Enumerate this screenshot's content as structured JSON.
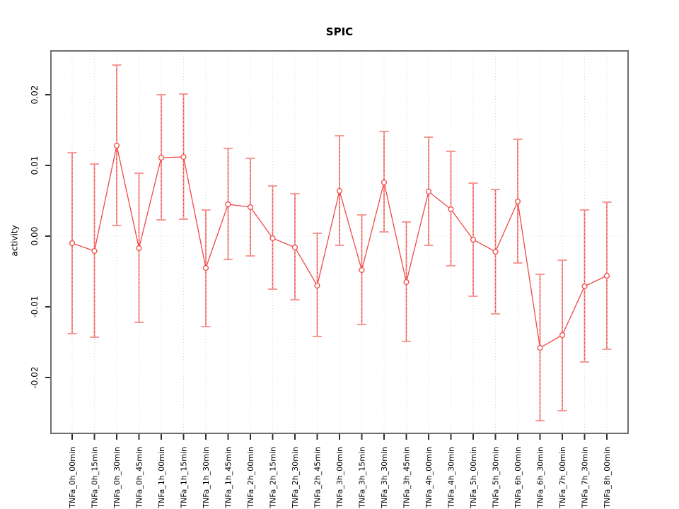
{
  "chart_data": {
    "type": "line",
    "title": "SPIC",
    "xlabel": "",
    "ylabel": "activity",
    "legend": null,
    "grid": "vertical-dotted",
    "zero_line": true,
    "point_style": "open-circle",
    "ylim": [
      -0.0279,
      0.0262
    ],
    "y_ticks": [
      -0.02,
      -0.01,
      0.0,
      0.01,
      0.02
    ],
    "y_tick_labels": [
      "-0.02",
      "-0.01",
      "0.00",
      "0.01",
      "0.02"
    ],
    "categories": [
      "TNFa_0h_00min",
      "TNFa_0h_15min",
      "TNFa_0h_30min",
      "TNFa_0h_45min",
      "TNFa_1h_00min",
      "TNFa_1h_15min",
      "TNFa_1h_30min",
      "TNFa_1h_45min",
      "TNFa_2h_00min",
      "TNFa_2h_15min",
      "TNFa_2h_30min",
      "TNFa_2h_45min",
      "TNFa_3h_00min",
      "TNFa_3h_15min",
      "TNFa_3h_30min",
      "TNFa_3h_45min",
      "TNFa_4h_00min",
      "TNFa_4h_30min",
      "TNFa_5h_00min",
      "TNFa_5h_30min",
      "TNFa_6h_00min",
      "TNFa_6h_30min",
      "TNFa_7h_00min",
      "TNFa_7h_30min",
      "TNFa_8h_00min"
    ],
    "series": [
      {
        "name": "activity",
        "values": [
          -0.001,
          -0.0021,
          0.0128,
          -0.0017,
          0.0111,
          0.0112,
          -0.0045,
          0.0045,
          0.0041,
          -0.0003,
          -0.0016,
          -0.007,
          0.0064,
          -0.0048,
          0.0076,
          -0.0065,
          0.0063,
          0.0038,
          -0.0005,
          -0.0022,
          0.0049,
          -0.0158,
          -0.014,
          -0.0071,
          -0.0056
        ],
        "lower": [
          -0.0138,
          -0.0143,
          0.0015,
          -0.0122,
          0.0023,
          0.0024,
          -0.0128,
          -0.0033,
          -0.0028,
          -0.0075,
          -0.009,
          -0.0142,
          -0.0013,
          -0.0125,
          0.0006,
          -0.0149,
          -0.0013,
          -0.0042,
          -0.0085,
          -0.011,
          -0.0038,
          -0.0261,
          -0.0247,
          -0.0178,
          -0.016
        ],
        "upper": [
          0.0118,
          0.0102,
          0.0242,
          0.0089,
          0.02,
          0.0201,
          0.0037,
          0.0124,
          0.011,
          0.0071,
          0.006,
          0.0004,
          0.0142,
          0.003,
          0.0148,
          0.002,
          0.014,
          0.012,
          0.0075,
          0.0066,
          0.0137,
          -0.0054,
          -0.0034,
          0.0037,
          0.0048
        ]
      }
    ],
    "colors": {
      "line": "#ef4945",
      "point": "#ef4945",
      "error_bar": "#f69a96",
      "error_bar_dash": "#ef4945",
      "grid": "#d7d7d7",
      "zero_line": "#e2dcdc",
      "box": "#6e6e6e",
      "tick": "#2f2f2f",
      "text": "#000000",
      "background": "#ffffff"
    }
  }
}
